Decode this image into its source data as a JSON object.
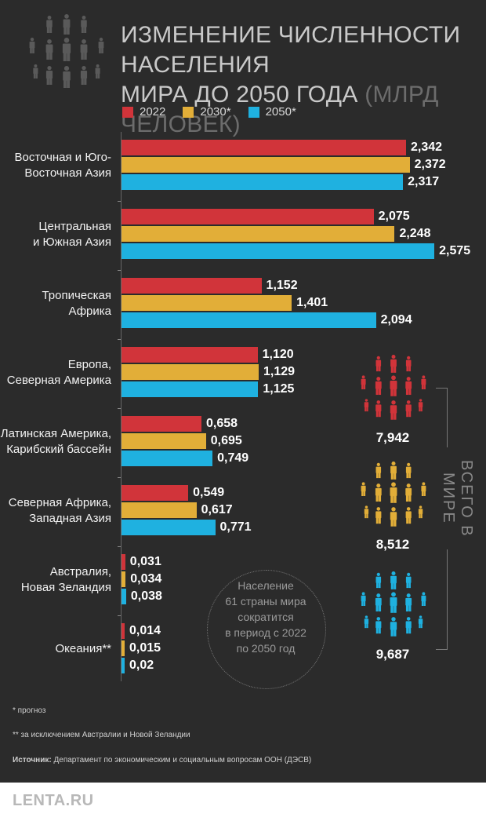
{
  "title": {
    "line1": "ИЗМЕНЕНИЕ ЧИСЛЕННОСТИ НАСЕЛЕНИЯ",
    "line2_main": "МИРА ДО 2050 ГОДА",
    "line2_unit": "(МЛРД ЧЕЛОВЕК)"
  },
  "colors": {
    "s2022": "#d1343a",
    "s2030": "#e2ae38",
    "s2050": "#1fb1e0",
    "icon_grey": "#5a5a5a"
  },
  "chart_data": {
    "type": "bar",
    "orientation": "horizontal",
    "title": "ИЗМЕНЕНИЕ ЧИСЛЕННОСТИ НАСЕЛЕНИЯ МИРА ДО 2050 ГОДА (МЛРД ЧЕЛОВЕК)",
    "categories": [
      [
        "Восточная и Юго-",
        "Восточная Азия"
      ],
      [
        "Центральная",
        "и Южная Азия"
      ],
      [
        "Тропическая",
        "Африка"
      ],
      [
        "Европа,",
        "Северная Америка"
      ],
      [
        "Латинская Америка,",
        "Карибский бассейн"
      ],
      [
        "Северная Африка,",
        "Западная Азия"
      ],
      [
        "Австралия,",
        "Новая Зеландия"
      ],
      [
        "Океания**"
      ]
    ],
    "series": [
      {
        "name": "2022",
        "values": [
          2.342,
          2.075,
          1.152,
          1.12,
          0.658,
          0.549,
          0.031,
          0.014
        ],
        "labels": [
          "2,342",
          "2,075",
          "1,152",
          "1,120",
          "0,658",
          "0,549",
          "0,031",
          "0,014"
        ]
      },
      {
        "name": "2030*",
        "values": [
          2.372,
          2.248,
          1.401,
          1.129,
          0.695,
          0.617,
          0.034,
          0.015
        ],
        "labels": [
          "2,372",
          "2,248",
          "1,401",
          "1,129",
          "0,695",
          "0,617",
          "0,034",
          "0,015"
        ]
      },
      {
        "name": "2050*",
        "values": [
          2.317,
          2.575,
          2.094,
          1.125,
          0.749,
          0.771,
          0.038,
          0.02
        ],
        "labels": [
          "2,317",
          "2,575",
          "2,094",
          "1,125",
          "0,749",
          "0,771",
          "0,038",
          "0,02"
        ]
      }
    ],
    "legend_position": "top-left",
    "grid": false
  },
  "totals": {
    "label": "ВСЕГО В МИРЕ",
    "items": [
      {
        "year": "2022",
        "value": "7,942"
      },
      {
        "year": "2030*",
        "value": "8,512"
      },
      {
        "year": "2050*",
        "value": "9,687"
      }
    ]
  },
  "note": {
    "lines": [
      "Население",
      "61 страны мира",
      "сократится",
      "в период с 2022",
      "по 2050 год"
    ]
  },
  "footnotes": {
    "forecast": "* прогноз",
    "exclusion": "** за исключением Австралии и Новой Зеландии",
    "source_label": "Источник:",
    "source_text": " Департамент по экономическим и социальным вопросам ООН (ДЭСВ)"
  },
  "footer": {
    "logo": "LENTA.RU"
  }
}
